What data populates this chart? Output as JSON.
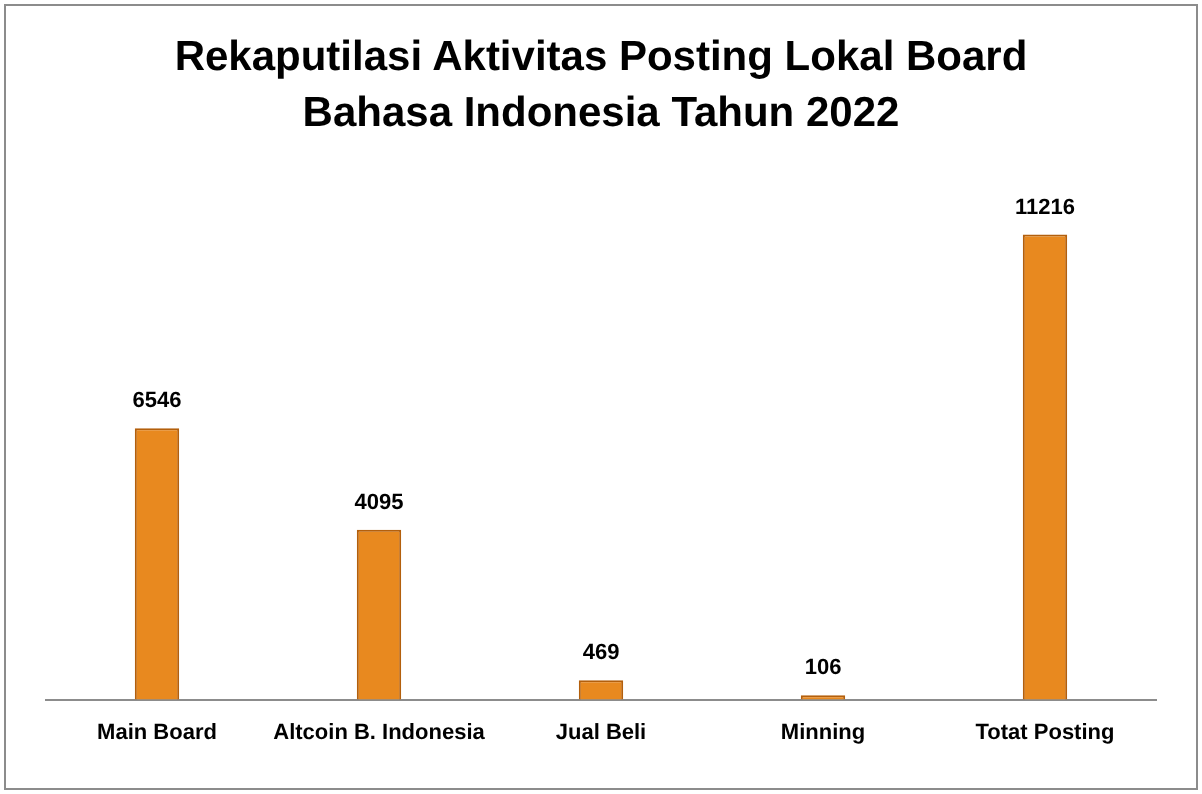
{
  "chart_data": {
    "type": "bar",
    "title": "Rekaputilasi Aktivitas Posting Lokal Board Bahasa Indonesia Tahun 2022",
    "categories": [
      "Main Board",
      "Altcoin B. Indonesia",
      "Jual Beli",
      "Minning",
      "Totat Posting"
    ],
    "values": [
      6546,
      4095,
      469,
      106,
      11216
    ],
    "color": "#e8891f",
    "data_labels": true,
    "tick_labels": "x",
    "grid": false,
    "legend": false
  }
}
